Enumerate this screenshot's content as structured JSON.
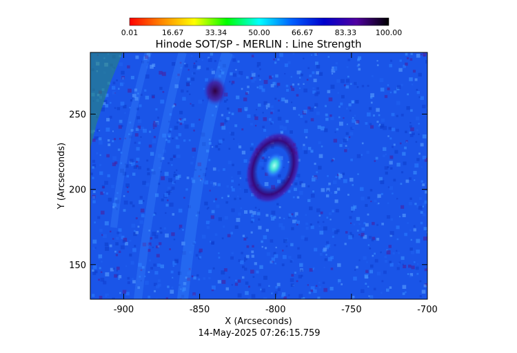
{
  "title": "Hinode SOT/SP - MERLIN : Line Strength",
  "timestamp": "14-May-2025 07:26:15.759",
  "colorbar": {
    "tick_labels": [
      "0.01",
      "16.67",
      "33.34",
      "50.00",
      "66.67",
      "83.33",
      "100.00"
    ],
    "range": [
      0.01,
      100.0
    ],
    "colormap": [
      "#ff0000",
      "#ff8800",
      "#ffff00",
      "#00ff00",
      "#00ffff",
      "#0060ff",
      "#0000cc",
      "#5000a0",
      "#000000"
    ]
  },
  "chart_data": {
    "type": "heatmap",
    "title": "Hinode SOT/SP - MERLIN : Line Strength",
    "xlabel": "X (Arcseconds)",
    "ylabel": "Y (Arcseconds)",
    "xlim": [
      -922,
      -700
    ],
    "ylim": [
      127,
      291
    ],
    "x_ticks": [
      -900,
      -850,
      -800,
      -750,
      -700
    ],
    "x_tick_labels": [
      "-900",
      "-850",
      "-800",
      "-750",
      "-700"
    ],
    "y_ticks": [
      150,
      200,
      250
    ],
    "y_tick_labels": [
      "150",
      "200",
      "250"
    ],
    "dominant_color": "#1a55e8",
    "features": [
      {
        "x": -801,
        "y": 215,
        "value": 70
      },
      {
        "x": -838,
        "y": 255,
        "value": 90
      }
    ]
  }
}
